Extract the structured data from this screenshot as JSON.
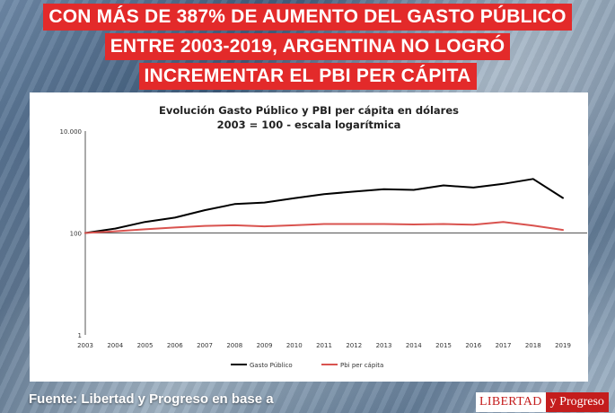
{
  "headline": {
    "line1": "CON MÁS DE 387% DE AUMENTO DEL GASTO PÚBLICO",
    "line2": "ENTRE 2003-2019, ARGENTINA NO LOGRÓ",
    "line3": "INCREMENTAR EL PBI PER CÁPITA",
    "bg_color": "#e32a2a"
  },
  "chart_data": {
    "type": "line",
    "title": "Evolución Gasto Público y PBI per cápita en dólares",
    "subtitle": "2003 = 100 - escala logarítmica",
    "y_scale": "log",
    "ylim": [
      1,
      10000
    ],
    "y_ticks": [
      1,
      100,
      10000
    ],
    "y_tick_labels": [
      "1",
      "100",
      "10.000"
    ],
    "x": [
      "2003",
      "2004",
      "2005",
      "2006",
      "2007",
      "2008",
      "2009",
      "2010",
      "2011",
      "2012",
      "2013",
      "2014",
      "2015",
      "2016",
      "2017",
      "2018",
      "2019"
    ],
    "series": [
      {
        "name": "Gasto Público",
        "color": "#000000",
        "values": [
          100,
          122,
          165,
          200,
          280,
          370,
          395,
          480,
          580,
          650,
          720,
          700,
          860,
          780,
          920,
          1150,
          487
        ]
      },
      {
        "name": "Pbi per cápita",
        "color": "#d9534f",
        "values": [
          100,
          108,
          118,
          128,
          138,
          142,
          135,
          142,
          150,
          150,
          150,
          147,
          150,
          145,
          165,
          140,
          115
        ]
      }
    ],
    "legend_position": "bottom",
    "grid": false
  },
  "footer": {
    "source": "Fuente: Libertad y Progreso en base a",
    "brand_part1": "LIBERTAD",
    "brand_part2": "y Progreso"
  }
}
